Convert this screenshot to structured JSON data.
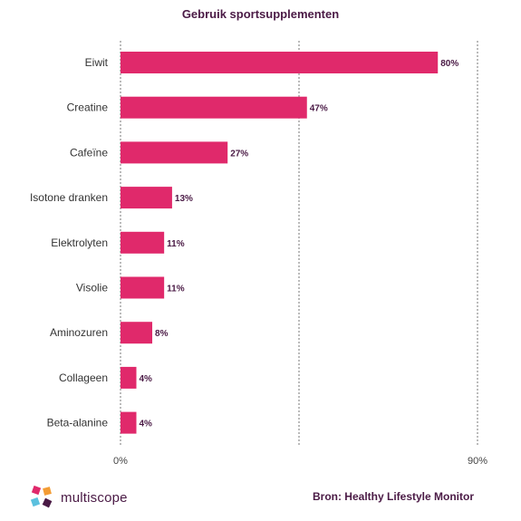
{
  "chart_data": {
    "type": "bar",
    "orientation": "horizontal",
    "title": "Gebruik sportsupplementen",
    "categories": [
      "Eiwit",
      "Creatine",
      "Cafeïne",
      "Isotone dranken",
      "Elektrolyten",
      "Visolie",
      "Aminozuren",
      "Collageen",
      "Beta-alanine"
    ],
    "values": [
      80,
      47,
      27,
      13,
      11,
      11,
      8,
      4,
      4
    ],
    "value_labels": [
      "80%",
      "47%",
      "27%",
      "13%",
      "11%",
      "11%",
      "8%",
      "4%",
      "4%"
    ],
    "xlim": [
      0,
      90
    ],
    "x_ticks": [
      {
        "value": 0,
        "label": "0%"
      },
      {
        "value": 90,
        "label": "90%"
      }
    ],
    "gridlines": [
      0,
      45,
      90
    ],
    "bar_color": "#e0296b",
    "label_color": "#4a1a45"
  },
  "footer": {
    "source": "Bron: Healthy Lifestyle Monitor",
    "logo_text": "multiscope"
  }
}
